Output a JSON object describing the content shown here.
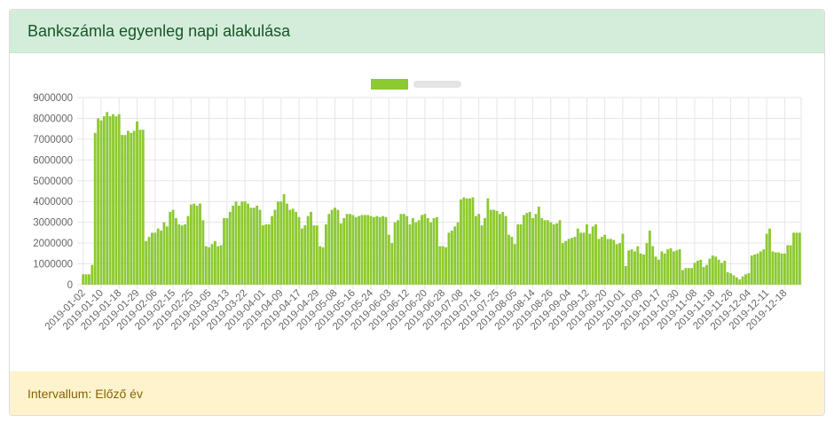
{
  "header": {
    "title": "Bankszámla egyenleg napi alakulása"
  },
  "footer": {
    "text": "Intervallum: Előző év"
  },
  "chart_data": {
    "type": "bar",
    "color": "#8cc932",
    "grid": true,
    "ylim": [
      0,
      9000000
    ],
    "yticks": [
      0,
      1000000,
      2000000,
      3000000,
      4000000,
      5000000,
      6000000,
      7000000,
      8000000,
      9000000
    ],
    "categories": [
      "2019-01-02",
      null,
      null,
      null,
      null,
      null,
      "2019-01-10",
      null,
      null,
      null,
      null,
      null,
      "2019-01-18",
      null,
      null,
      null,
      null,
      null,
      "2019-01-29",
      null,
      null,
      null,
      null,
      null,
      "2019-02-06",
      null,
      null,
      null,
      null,
      null,
      "2019-02-15",
      null,
      null,
      null,
      null,
      null,
      "2019-02-25",
      null,
      null,
      null,
      null,
      null,
      "2019-03-05",
      null,
      null,
      null,
      null,
      null,
      "2019-03-13",
      null,
      null,
      null,
      null,
      null,
      "2019-03-22",
      null,
      null,
      null,
      null,
      null,
      "2019-04-01",
      null,
      null,
      null,
      null,
      null,
      "2019-04-09",
      null,
      null,
      null,
      null,
      null,
      "2019-04-17",
      null,
      null,
      null,
      null,
      null,
      "2019-04-29",
      null,
      null,
      null,
      null,
      null,
      "2019-05-08",
      null,
      null,
      null,
      null,
      null,
      "2019-05-16",
      null,
      null,
      null,
      null,
      null,
      "2019-05-24",
      null,
      null,
      null,
      null,
      null,
      "2019-06-03",
      null,
      null,
      null,
      null,
      null,
      "2019-06-12",
      null,
      null,
      null,
      null,
      null,
      "2019-06-20",
      null,
      null,
      null,
      null,
      null,
      "2019-06-28",
      null,
      null,
      null,
      null,
      null,
      "2019-07-08",
      null,
      null,
      null,
      null,
      null,
      "2019-07-16",
      null,
      null,
      null,
      null,
      null,
      "2019-07-25",
      null,
      null,
      null,
      null,
      null,
      "2019-08-05",
      null,
      null,
      null,
      null,
      null,
      "2019-08-14",
      null,
      null,
      null,
      null,
      null,
      "2019-08-26",
      null,
      null,
      null,
      null,
      null,
      "2019-09-04",
      null,
      null,
      null,
      null,
      null,
      "2019-09-12",
      null,
      null,
      null,
      null,
      null,
      "2019-09-20",
      null,
      null,
      null,
      null,
      null,
      "2019-10-01",
      null,
      null,
      null,
      null,
      null,
      "2019-10-09",
      null,
      null,
      null,
      null,
      null,
      "2019-10-17",
      null,
      null,
      null,
      null,
      null,
      "2019-10-30",
      null,
      null,
      null,
      null,
      null,
      "2019-11-08",
      null,
      null,
      null,
      null,
      null,
      "2019-11-18",
      null,
      null,
      null,
      null,
      null,
      "2019-11-26",
      null,
      null,
      null,
      null,
      null,
      "2019-12-04",
      null,
      null,
      null,
      null,
      null,
      "2019-12-11",
      null,
      null,
      null,
      null,
      null,
      "2019-12-18",
      null,
      null,
      null,
      null,
      null
    ],
    "values": [
      500000,
      500000,
      500000,
      950000,
      7300000,
      8000000,
      7900000,
      8100000,
      8300000,
      8100000,
      8200000,
      8100000,
      8200000,
      7200000,
      7200000,
      7400000,
      7300000,
      7400000,
      7850000,
      7450000,
      7450000,
      2100000,
      2300000,
      2500000,
      2500000,
      2700000,
      2600000,
      3000000,
      2800000,
      3500000,
      3600000,
      3200000,
      2900000,
      2850000,
      2900000,
      3300000,
      3850000,
      3900000,
      3800000,
      3900000,
      3100000,
      1850000,
      1800000,
      1950000,
      2100000,
      1850000,
      1900000,
      3200000,
      3200000,
      3500000,
      3800000,
      4000000,
      3800000,
      4000000,
      4000000,
      3900000,
      3700000,
      3700000,
      3800000,
      3600000,
      2850000,
      2900000,
      2900000,
      3300000,
      3600000,
      4000000,
      4000000,
      4350000,
      3900000,
      3600000,
      3650000,
      3500000,
      3250000,
      2700000,
      2850000,
      3300000,
      3500000,
      2850000,
      2850000,
      1850000,
      1800000,
      2900000,
      3400000,
      3600000,
      3700000,
      3600000,
      2950000,
      3200000,
      3400000,
      3400000,
      3350000,
      3250000,
      3300000,
      3350000,
      3350000,
      3350000,
      3300000,
      3250000,
      3300000,
      3250000,
      3300000,
      3250000,
      2400000,
      2000000,
      3000000,
      3100000,
      3400000,
      3400000,
      3300000,
      2900000,
      3200000,
      3000000,
      3100000,
      3350000,
      3400000,
      3200000,
      3000000,
      3200000,
      3250000,
      1850000,
      1850000,
      1800000,
      2500000,
      2600000,
      2800000,
      3000000,
      4100000,
      4200000,
      4150000,
      4150000,
      4200000,
      3300000,
      3400000,
      2850000,
      3200000,
      4150000,
      3600000,
      3600000,
      3550000,
      3400000,
      3500000,
      3300000,
      2400000,
      2300000,
      1950000,
      2900000,
      2900000,
      3350000,
      3450000,
      3500000,
      3200000,
      3400000,
      3750000,
      3200000,
      3100000,
      3100000,
      3000000,
      2900000,
      2950000,
      3100000,
      2000000,
      2100000,
      2200000,
      2250000,
      2300000,
      2700000,
      2500000,
      2500000,
      2900000,
      2450000,
      2800000,
      2900000,
      2200000,
      2300000,
      2400000,
      2200000,
      2200000,
      2150000,
      1950000,
      2000000,
      2450000,
      900000,
      1650000,
      1700000,
      1600000,
      1850000,
      1500000,
      1450000,
      2000000,
      2600000,
      1850000,
      1350000,
      1200000,
      1600000,
      1500000,
      1700000,
      1750000,
      1600000,
      1650000,
      1700000,
      700000,
      800000,
      800000,
      800000,
      1050000,
      1150000,
      1200000,
      850000,
      950000,
      1250000,
      1400000,
      1350000,
      1200000,
      1050000,
      1150000,
      600000,
      550000,
      450000,
      350000,
      250000,
      400000,
      500000,
      550000,
      1400000,
      1450000,
      1500000,
      1600000,
      1700000,
      2450000,
      2700000,
      1600000,
      1550000,
      1550000,
      1500000,
      1500000,
      1900000,
      1900000,
      2500000,
      2500000,
      2500000
    ]
  }
}
